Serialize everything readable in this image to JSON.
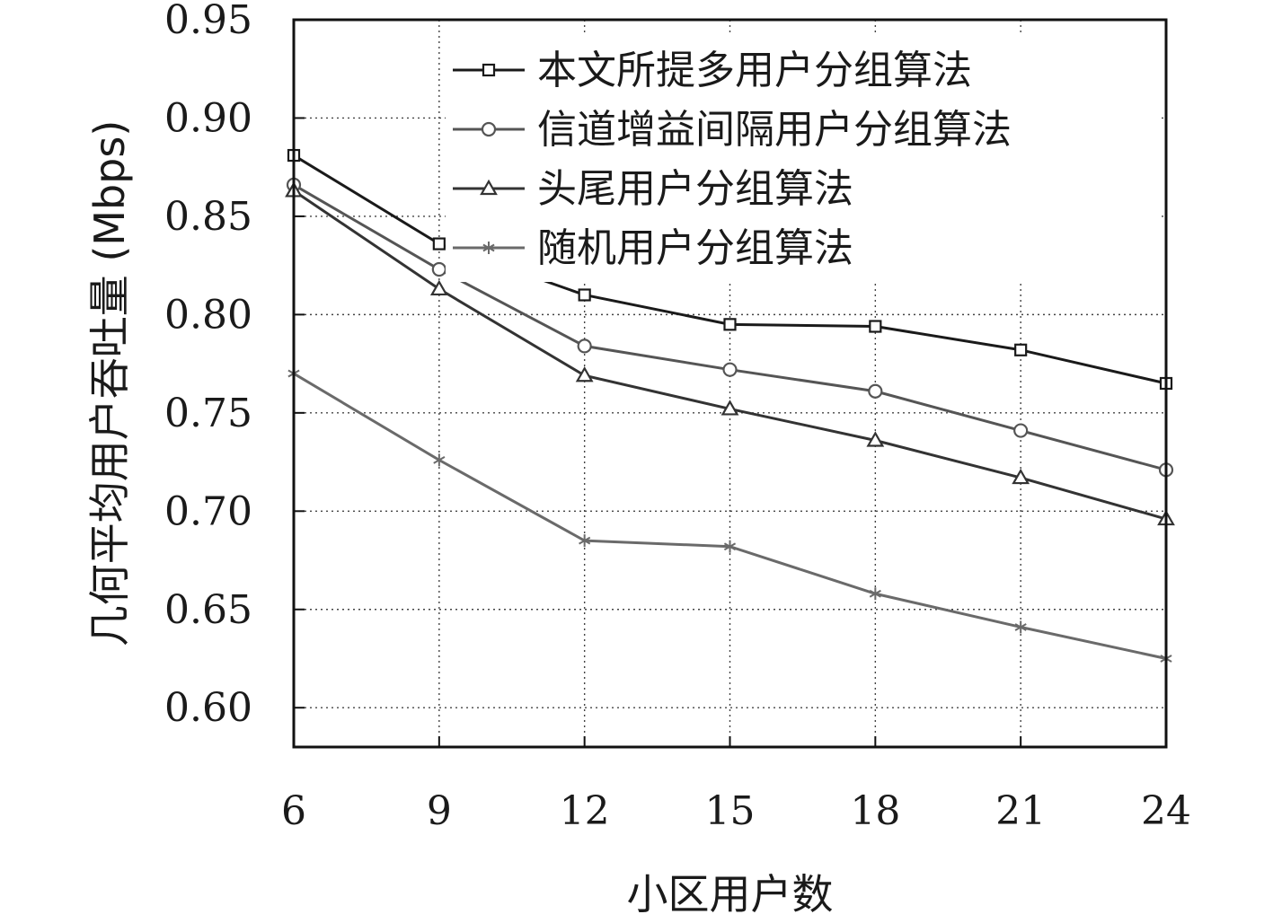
{
  "chart_data": {
    "type": "line",
    "title": "",
    "xlabel": "小区用户数",
    "ylabel": "几何平均用户吞吐量 (Mbps)",
    "x": [
      6,
      9,
      12,
      15,
      18,
      21,
      24
    ],
    "xticks": [
      "6",
      "9",
      "12",
      "15",
      "18",
      "21",
      "24"
    ],
    "yticks": [
      "0.60",
      "0.65",
      "0.70",
      "0.75",
      "0.80",
      "0.85",
      "0.90",
      "0.95"
    ],
    "xlim": [
      6,
      24
    ],
    "ylim": [
      0.58,
      0.95
    ],
    "grid": true,
    "legend_position": "top-right",
    "series": [
      {
        "name": "本文所提多用户分组算法",
        "marker": "square",
        "color": "#1a1a1a",
        "values": [
          0.881,
          0.836,
          0.81,
          0.795,
          0.794,
          0.782,
          0.765
        ]
      },
      {
        "name": "信道增益间隔用户分组算法",
        "marker": "circle",
        "color": "#555555",
        "values": [
          0.866,
          0.823,
          0.784,
          0.772,
          0.761,
          0.741,
          0.721
        ]
      },
      {
        "name": "头尾用户分组算法",
        "marker": "triangle",
        "color": "#333333",
        "values": [
          0.863,
          0.813,
          0.769,
          0.752,
          0.736,
          0.717,
          0.696
        ]
      },
      {
        "name": "随机用户分组算法",
        "marker": "star",
        "color": "#6a6a6a",
        "values": [
          0.77,
          0.726,
          0.685,
          0.682,
          0.658,
          0.641,
          0.625
        ]
      }
    ]
  }
}
